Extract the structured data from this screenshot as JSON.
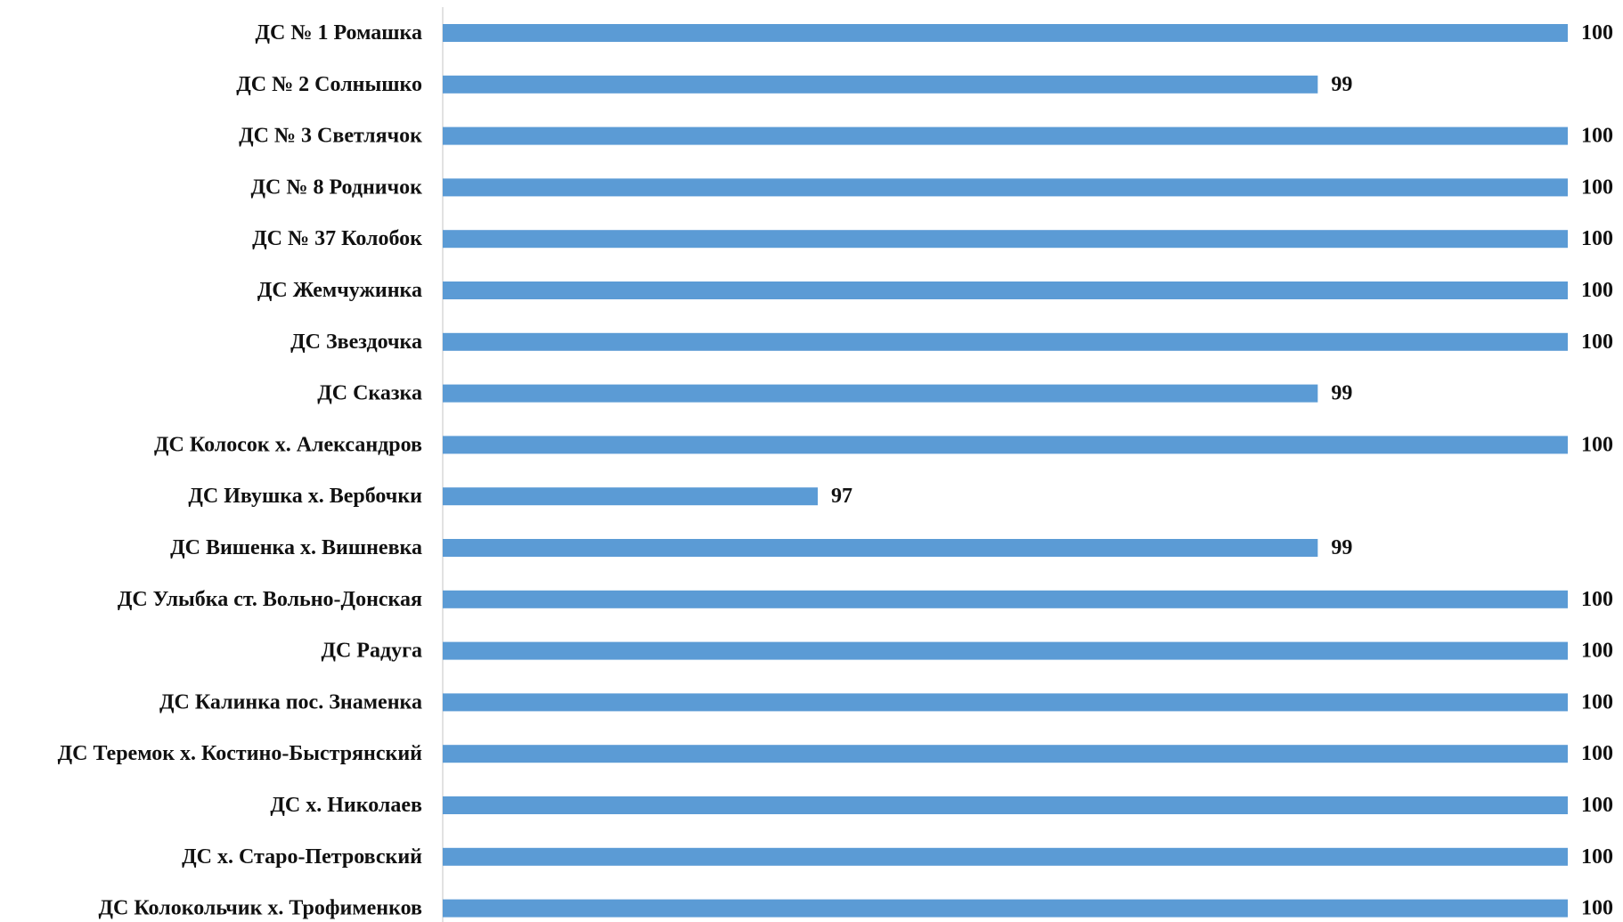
{
  "chart_data": {
    "type": "bar",
    "orientation": "horizontal",
    "title": "",
    "xlabel": "",
    "ylabel": "",
    "categories": [
      "ДС № 1 Ромашка",
      "ДС № 2 Солнышко",
      "ДС № 3 Светлячок",
      "ДС № 8 Родничок",
      "ДС № 37 Колобок",
      "ДС Жемчужинка",
      "ДС Звездочка",
      "ДС Сказка",
      "ДС Колосок х. Александров",
      "ДС Ивушка х. Вербочки",
      "ДС Вишенка х. Вишневка",
      "ДС Улыбка ст. Вольно-Донская",
      "ДС Радуга",
      "ДС Калинка пос. Знаменка",
      "ДС Теремок х. Костино-Быстрянский",
      "ДС х. Николаев",
      "ДС х. Старо-Петровский",
      "ДС Колокольчик х. Трофименков"
    ],
    "values": [
      100,
      99,
      100,
      100,
      100,
      100,
      100,
      99,
      100,
      97,
      99,
      100,
      100,
      100,
      100,
      100,
      100,
      100
    ],
    "xlim": [
      95.5,
      100
    ],
    "bar_color": "#5b9bd5",
    "axis_color": "#d9d9d9",
    "data_labels": true,
    "grid": false,
    "legend": "none"
  }
}
